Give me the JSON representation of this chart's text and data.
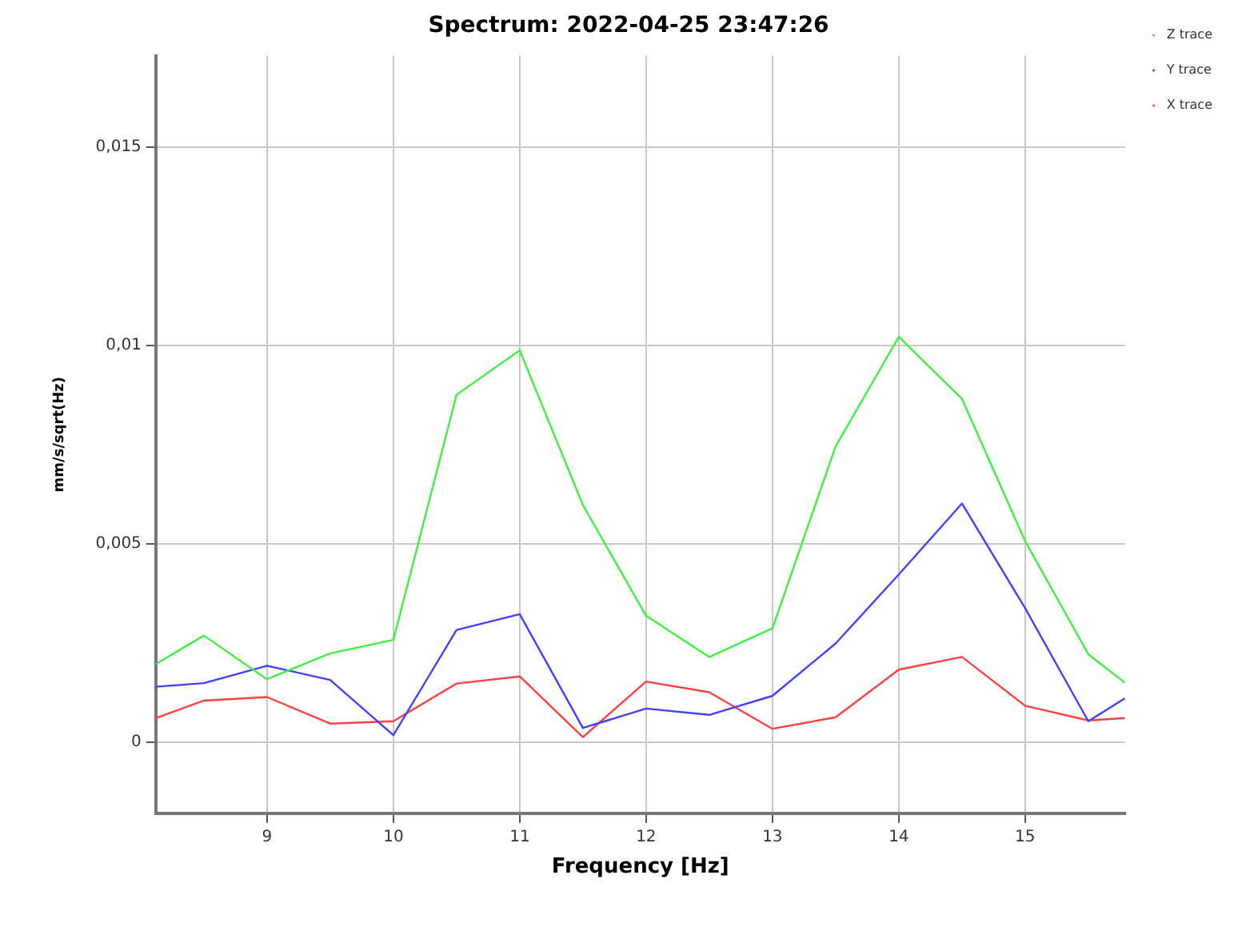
{
  "chart_data": {
    "type": "line",
    "title": "Spectrum: 2022-04-25 23:47:26",
    "xlabel": "Frequency [Hz]",
    "ylabel": "mm/s/sqrt(Hz)",
    "x": [
      8.12,
      8.5,
      9,
      9.5,
      10,
      10.5,
      11,
      11.5,
      12,
      12.5,
      13,
      13.5,
      14,
      14.5,
      15,
      15.5,
      15.79
    ],
    "series": [
      {
        "name": "Z trace",
        "color": "#40f040",
        "values": [
          0.00196,
          0.00268,
          0.00158,
          0.00223,
          0.00257,
          0.00875,
          0.00987,
          0.00597,
          0.00318,
          0.00214,
          0.00286,
          0.00745,
          0.01021,
          0.00865,
          0.00506,
          0.00221,
          0.00149
        ]
      },
      {
        "name": "Y trace",
        "color": "#4040ff",
        "values": [
          0.00139,
          0.00148,
          0.00192,
          0.00156,
          0.00017,
          0.00282,
          0.00322,
          0.00035,
          0.00084,
          0.00068,
          0.00116,
          0.00248,
          0.00422,
          0.00601,
          0.00337,
          0.00052,
          0.0011
        ]
      },
      {
        "name": "X trace",
        "color": "#ff4040",
        "values": [
          0.0006,
          0.00104,
          0.00113,
          0.00046,
          0.00052,
          0.00147,
          0.00165,
          0.00012,
          0.00152,
          0.00125,
          0.00033,
          0.00062,
          0.00182,
          0.00214,
          0.00091,
          0.00054,
          0.0006
        ]
      }
    ],
    "xlim": [
      8.12,
      15.79
    ],
    "xticks": [
      9,
      10,
      11,
      12,
      13,
      14,
      15
    ],
    "ylim": [
      -0.0018,
      0.0173
    ],
    "yticks": [
      {
        "value": 0,
        "label": "0"
      },
      {
        "value": 0.005,
        "label": "0,005"
      },
      {
        "value": 0.01,
        "label": "0,01"
      },
      {
        "value": 0.015,
        "label": "0,015"
      }
    ],
    "grid": true,
    "legend": "top right",
    "marker": "none",
    "line_style": "solid"
  }
}
